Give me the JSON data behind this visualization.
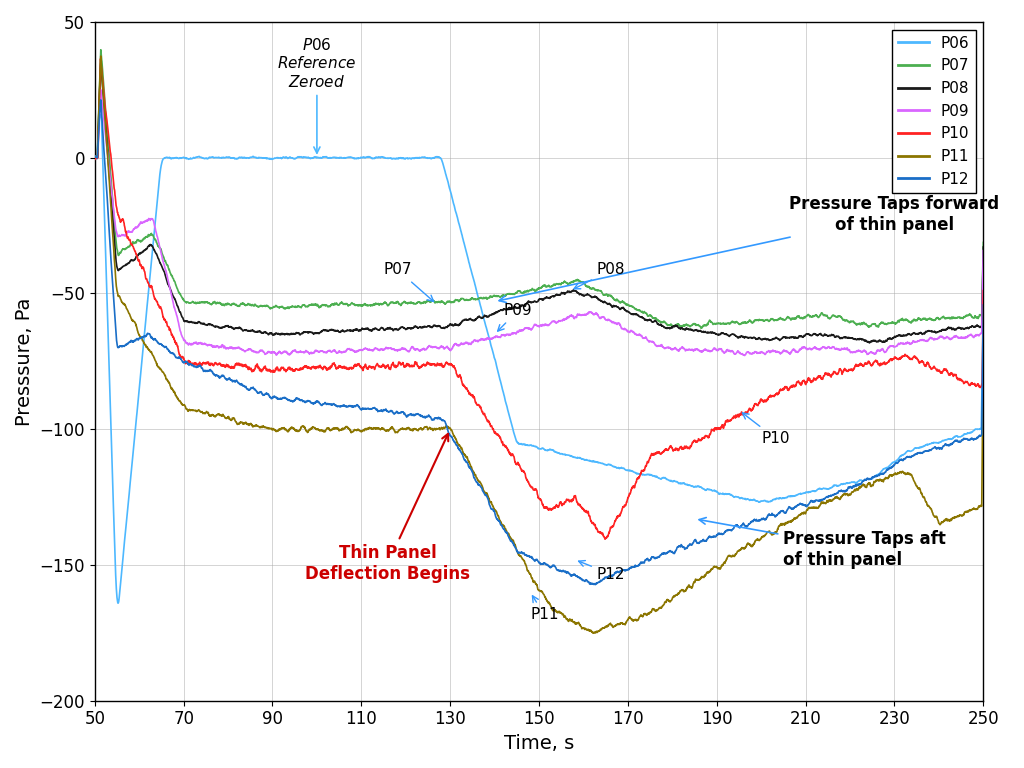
{
  "title": "",
  "xlabel": "Time, s",
  "ylabel": "Presssure, Pa",
  "xlim": [
    50,
    250
  ],
  "ylim": [
    -200,
    50
  ],
  "yticks": [
    50,
    0,
    -50,
    -100,
    -150,
    -200
  ],
  "xticks": [
    50,
    70,
    90,
    110,
    130,
    150,
    170,
    190,
    210,
    230,
    250
  ],
  "colors": {
    "P06": "#4db8ff",
    "P07": "#4caf50",
    "P08": "#1a1a1a",
    "P09": "#d966ff",
    "P10": "#ff2222",
    "P11": "#8b7500",
    "P12": "#1a6ec7"
  },
  "background_color": "#ffffff",
  "grid_color": "#aaaaaa",
  "annotation_color_forward": "#000000",
  "annotation_color_aft": "#000000",
  "annotation_color_deflection": "#cc0000",
  "annotation_color_p06": "#000000"
}
